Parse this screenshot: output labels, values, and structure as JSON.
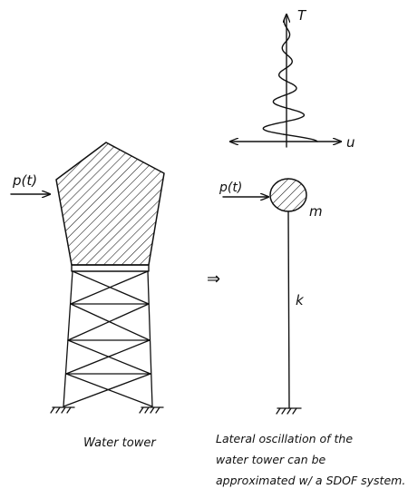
{
  "colors": {
    "ink": "#111111",
    "paper": "#ffffff"
  },
  "response_plot": {
    "vertical_axis_label": "T",
    "horizontal_axis_label": "u"
  },
  "tower": {
    "load_label": "p(t)",
    "caption": "Water tower"
  },
  "arrow_text": "⇒",
  "sdof": {
    "load_label": "p(t)",
    "mass_label": "m",
    "stiffness_label": "k"
  },
  "note_lines": [
    "Lateral oscillation of the",
    "water tower can be",
    "approximated w/ a SDOF system."
  ]
}
